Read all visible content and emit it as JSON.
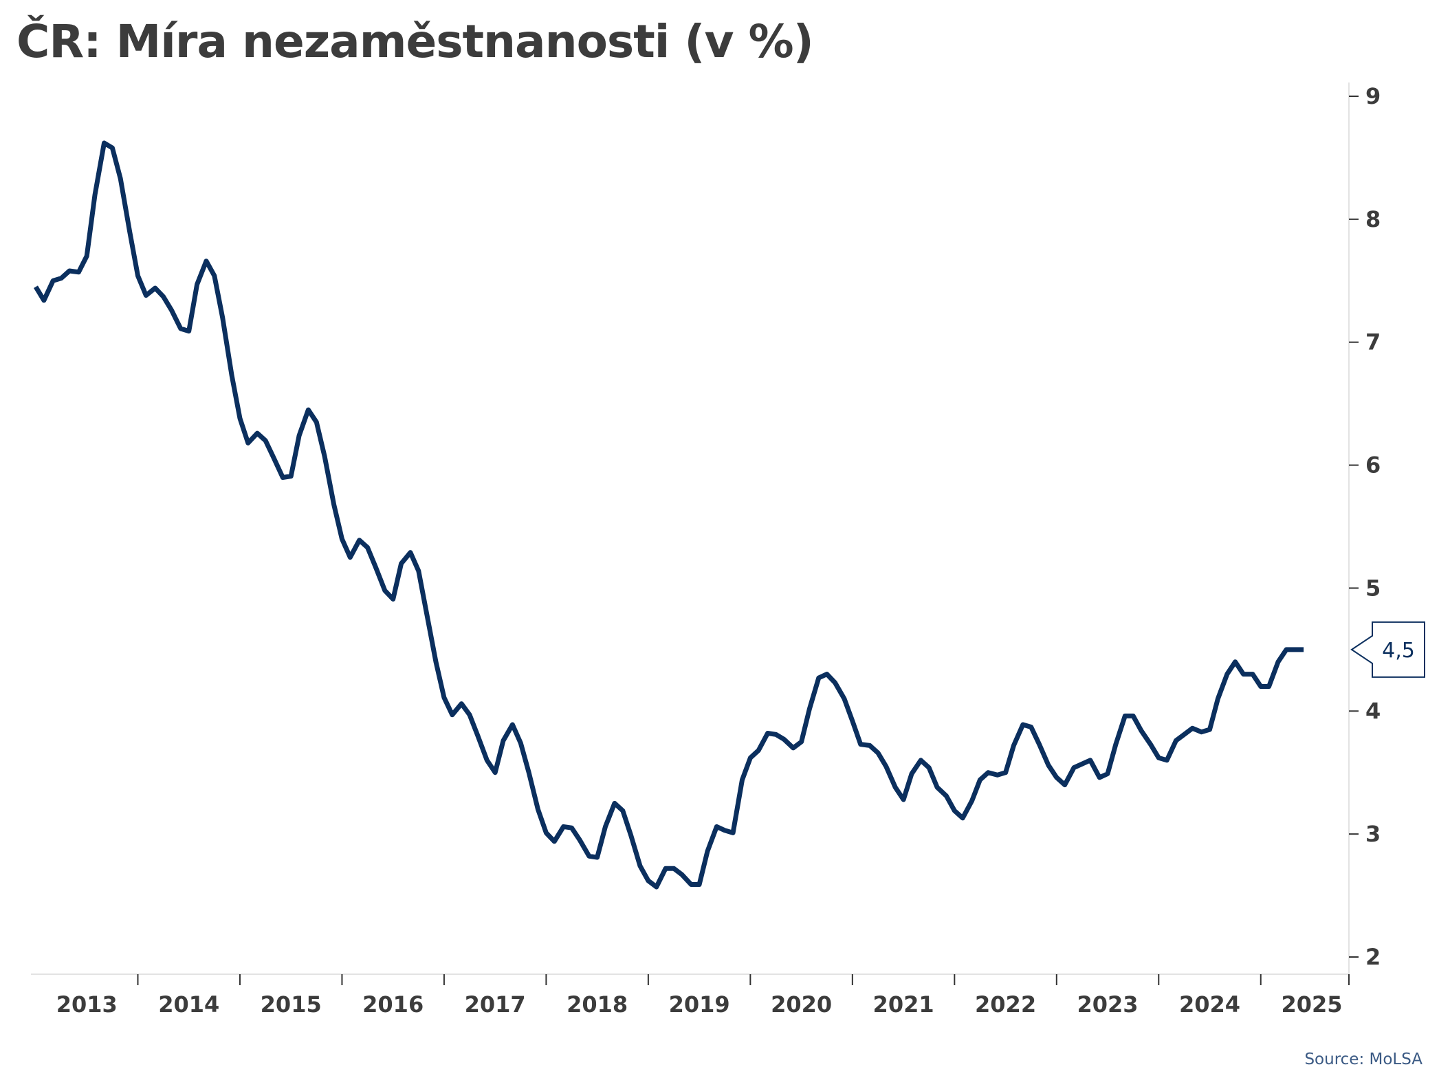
{
  "chart_data": {
    "type": "line",
    "title": "ČR: Míra nezaměstnanosti (v %)",
    "source": "Source: MoLSA",
    "xlabel": "",
    "ylabel": "",
    "x_range": [
      2013.0,
      2025.5
    ],
    "ylim": [
      2,
      9
    ],
    "y_ticks": [
      "2",
      "3",
      "4",
      "5",
      "6",
      "7",
      "8",
      "9"
    ],
    "x_ticks": [
      "2013",
      "2014",
      "2015",
      "2016",
      "2017",
      "2018",
      "2019",
      "2020",
      "2021",
      "2022",
      "2023",
      "2024",
      "2025"
    ],
    "y_axis_position": "right",
    "grid": false,
    "legend": "none",
    "line_color": "#0b2f5e",
    "last_value_label": "4,5",
    "series": [
      {
        "x": [
          2013.0,
          2013.08,
          2013.17,
          2013.25,
          2013.33,
          2013.42,
          2013.5,
          2013.58,
          2013.67,
          2013.75,
          2013.83,
          2013.92,
          2014.0,
          2014.08,
          2014.17,
          2014.25,
          2014.33,
          2014.42,
          2014.5,
          2014.58,
          2014.67,
          2014.75,
          2014.83,
          2014.92,
          2015.0,
          2015.08,
          2015.17,
          2015.25,
          2015.33,
          2015.42,
          2015.5,
          2015.58,
          2015.67,
          2015.75,
          2015.83,
          2015.92,
          2016.0,
          2016.08,
          2016.17,
          2016.25,
          2016.33,
          2016.42,
          2016.5,
          2016.58,
          2016.67,
          2016.75,
          2016.83,
          2016.92,
          2017.0,
          2017.08,
          2017.17,
          2017.25,
          2017.33,
          2017.42,
          2017.5,
          2017.58,
          2017.67,
          2017.75,
          2017.83,
          2017.92,
          2018.0,
          2018.08,
          2018.17,
          2018.25,
          2018.33,
          2018.42,
          2018.5,
          2018.58,
          2018.67,
          2018.75,
          2018.83,
          2018.92,
          2019.0,
          2019.08,
          2019.17,
          2019.25,
          2019.33,
          2019.42,
          2019.5,
          2019.58,
          2019.67,
          2019.75,
          2019.83,
          2019.92,
          2020.0,
          2020.08,
          2020.17,
          2020.25,
          2020.33,
          2020.42,
          2020.5,
          2020.58,
          2020.67,
          2020.75,
          2020.83,
          2020.92,
          2021.0,
          2021.08,
          2021.17,
          2021.25,
          2021.33,
          2021.42,
          2021.5,
          2021.58,
          2021.67,
          2021.75,
          2021.83,
          2021.92,
          2022.0,
          2022.08,
          2022.17,
          2022.25,
          2022.33,
          2022.42,
          2022.5,
          2022.58,
          2022.67,
          2022.75,
          2022.83,
          2022.92,
          2023.0,
          2023.08,
          2023.17,
          2023.25,
          2023.33,
          2023.42,
          2023.5,
          2023.58,
          2023.67,
          2023.75,
          2023.83,
          2023.92,
          2024.0,
          2024.08,
          2024.17,
          2024.25,
          2024.33,
          2024.42,
          2024.5,
          2024.58,
          2024.67,
          2024.75,
          2024.83,
          2024.92,
          2025.0,
          2025.08,
          2025.17,
          2025.25,
          2025.33,
          2025.42
        ],
        "values": [
          7.45,
          7.34,
          7.5,
          7.52,
          7.58,
          7.57,
          7.7,
          8.2,
          8.62,
          8.58,
          8.33,
          7.9,
          7.54,
          7.38,
          7.44,
          7.37,
          7.26,
          7.11,
          7.09,
          7.47,
          7.66,
          7.54,
          7.2,
          6.73,
          6.38,
          6.18,
          6.26,
          6.2,
          6.06,
          5.9,
          5.91,
          6.24,
          6.45,
          6.35,
          6.07,
          5.68,
          5.4,
          5.25,
          5.39,
          5.33,
          5.17,
          4.98,
          4.91,
          5.2,
          5.29,
          5.14,
          4.79,
          4.4,
          4.11,
          3.97,
          4.06,
          3.97,
          3.8,
          3.6,
          3.5,
          3.76,
          3.89,
          3.74,
          3.5,
          3.2,
          3.01,
          2.94,
          3.06,
          3.05,
          2.95,
          2.82,
          2.81,
          3.06,
          3.25,
          3.19,
          2.99,
          2.74,
          2.62,
          2.57,
          2.72,
          2.72,
          2.67,
          2.59,
          2.59,
          2.86,
          3.06,
          3.03,
          3.01,
          3.44,
          3.62,
          3.68,
          3.82,
          3.81,
          3.77,
          3.7,
          3.75,
          4.02,
          4.27,
          4.3,
          4.23,
          4.1,
          3.92,
          3.73,
          3.72,
          3.66,
          3.55,
          3.38,
          3.28,
          3.49,
          3.6,
          3.54,
          3.38,
          3.31,
          3.19,
          3.13,
          3.27,
          3.44,
          3.5,
          3.48,
          3.5,
          3.72,
          3.89,
          3.87,
          3.73,
          3.56,
          3.46,
          3.4,
          3.54,
          3.57,
          3.6,
          3.46,
          3.49,
          3.73,
          3.96,
          3.96,
          3.84,
          3.73,
          3.62,
          3.6,
          3.76,
          3.81,
          3.86,
          3.83,
          3.85,
          4.1,
          4.3,
          4.4,
          4.3,
          4.3,
          4.2,
          4.2,
          4.4,
          4.5,
          4.5,
          4.5
        ]
      }
    ]
  }
}
